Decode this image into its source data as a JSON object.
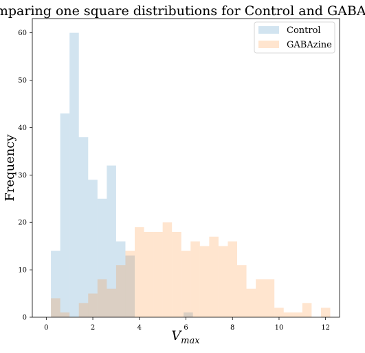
{
  "chart_data": {
    "type": "histogram",
    "title": "Comparing one square distributions for Control and GABAzine",
    "xlabel_main": "V",
    "xlabel_sub": "max",
    "ylabel": "Frequency",
    "xlim": [
      -0.6,
      12.6
    ],
    "ylim": [
      0,
      63
    ],
    "xticks": [
      0,
      2,
      4,
      6,
      8,
      10,
      12
    ],
    "yticks": [
      0,
      10,
      20,
      30,
      40,
      50,
      60
    ],
    "bin_width": 0.4,
    "legend_position": "top-right",
    "grid": false,
    "series": [
      {
        "name": "Control",
        "color": "#1f77b4",
        "opacity": 0.2,
        "bins": [
          {
            "x0": 0.2,
            "count": 14
          },
          {
            "x0": 0.6,
            "count": 43
          },
          {
            "x0": 1.0,
            "count": 60
          },
          {
            "x0": 1.4,
            "count": 38
          },
          {
            "x0": 1.8,
            "count": 29
          },
          {
            "x0": 2.2,
            "count": 25
          },
          {
            "x0": 2.6,
            "count": 32
          },
          {
            "x0": 3.0,
            "count": 16
          },
          {
            "x0": 3.4,
            "count": 13
          },
          {
            "x0": 5.9,
            "count": 1
          }
        ]
      },
      {
        "name": "GABAzine",
        "color": "#ff7f0e",
        "opacity": 0.2,
        "bins": [
          {
            "x0": 0.2,
            "count": 4
          },
          {
            "x0": 0.6,
            "count": 1
          },
          {
            "x0": 1.4,
            "count": 3
          },
          {
            "x0": 1.8,
            "count": 5
          },
          {
            "x0": 2.2,
            "count": 8
          },
          {
            "x0": 2.6,
            "count": 6
          },
          {
            "x0": 3.0,
            "count": 11
          },
          {
            "x0": 3.4,
            "count": 14
          },
          {
            "x0": 3.8,
            "count": 19
          },
          {
            "x0": 4.2,
            "count": 18
          },
          {
            "x0": 4.6,
            "count": 18
          },
          {
            "x0": 5.0,
            "count": 20
          },
          {
            "x0": 5.4,
            "count": 18
          },
          {
            "x0": 5.8,
            "count": 14
          },
          {
            "x0": 6.2,
            "count": 16
          },
          {
            "x0": 6.6,
            "count": 15
          },
          {
            "x0": 7.0,
            "count": 17
          },
          {
            "x0": 7.4,
            "count": 15
          },
          {
            "x0": 7.8,
            "count": 16
          },
          {
            "x0": 8.2,
            "count": 11
          },
          {
            "x0": 8.6,
            "count": 6
          },
          {
            "x0": 9.0,
            "count": 8
          },
          {
            "x0": 9.4,
            "count": 8
          },
          {
            "x0": 9.8,
            "count": 2
          },
          {
            "x0": 10.2,
            "count": 1
          },
          {
            "x0": 10.6,
            "count": 1
          },
          {
            "x0": 11.0,
            "count": 3
          },
          {
            "x0": 11.8,
            "count": 2
          }
        ]
      }
    ]
  }
}
